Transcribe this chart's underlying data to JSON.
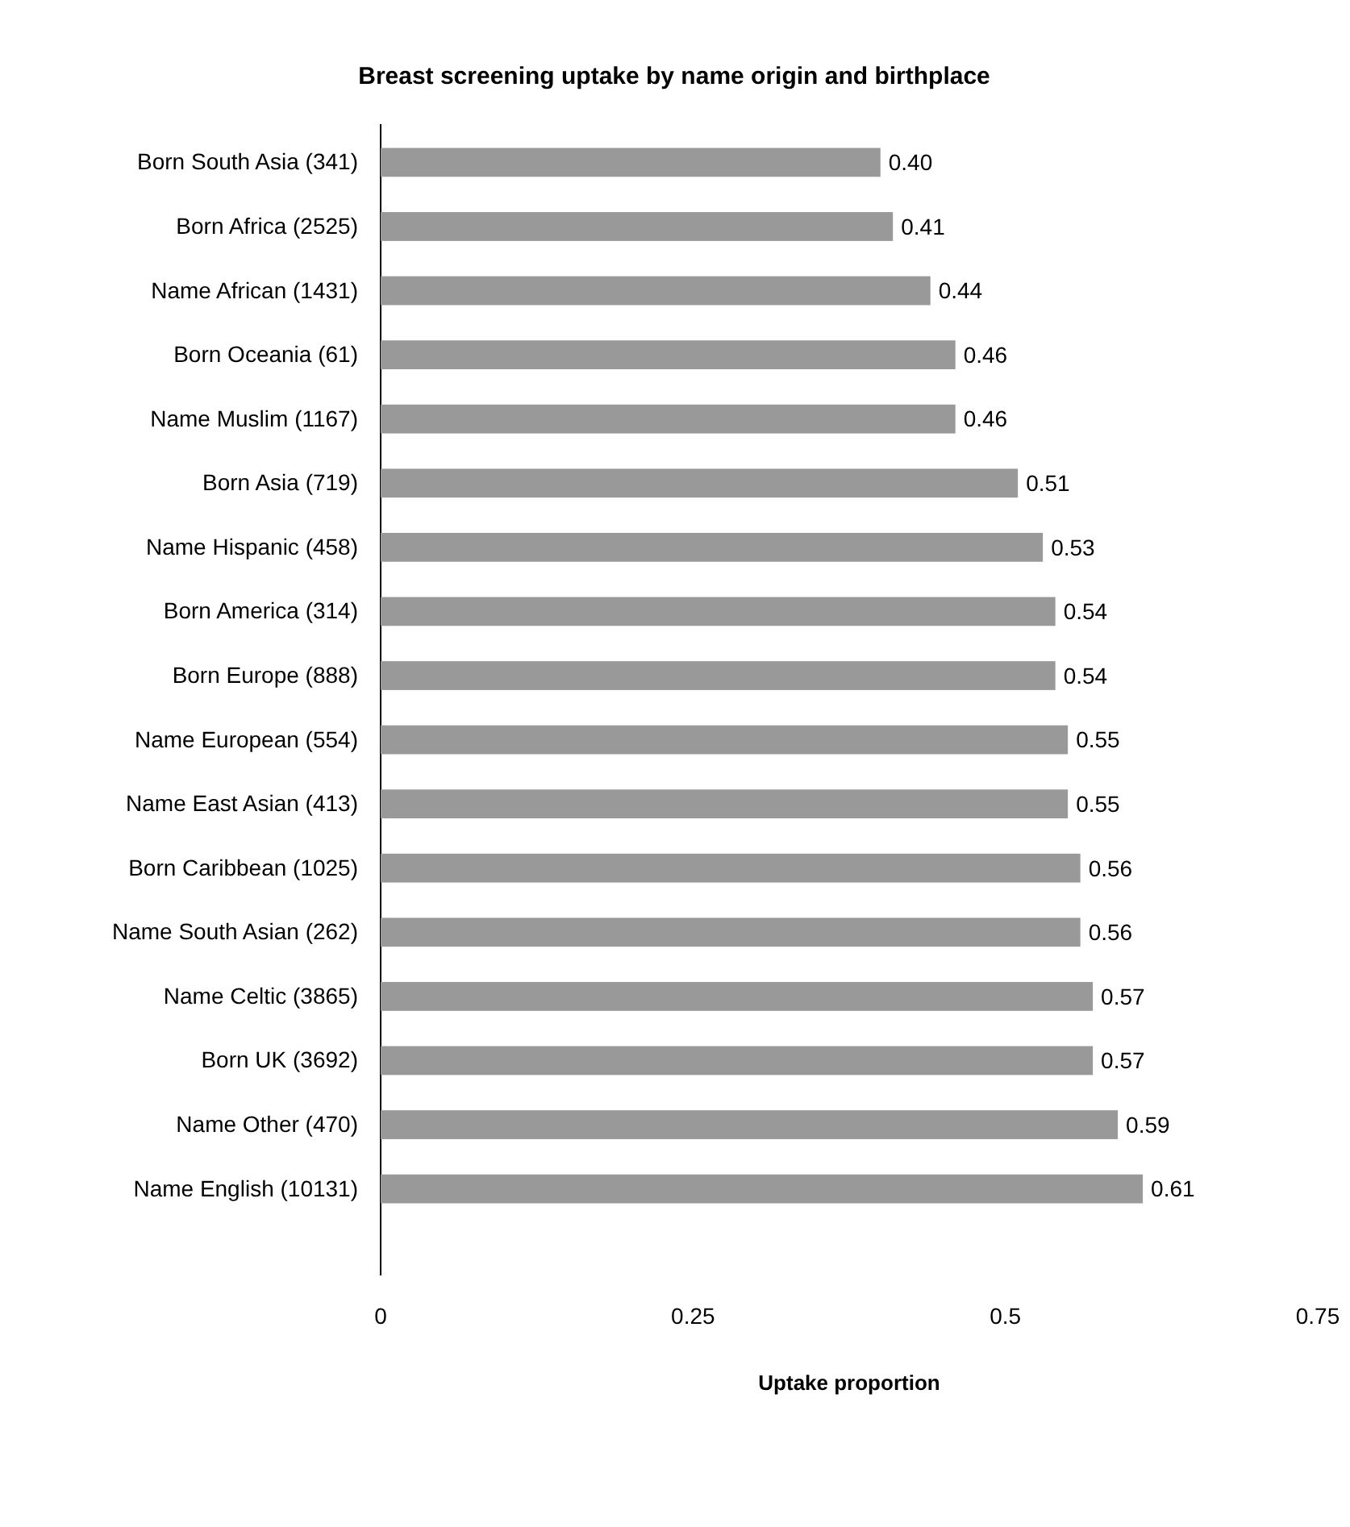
{
  "chart_data": {
    "type": "bar",
    "orientation": "horizontal",
    "title": "Breast screening uptake by name origin and birthplace",
    "xlabel": "Uptake proportion",
    "categories": [
      "Born South Asia (341)",
      "Born Africa (2525)",
      "Name African (1431)",
      "Born Oceania (61)",
      "Name Muslim (1167)",
      "Born Asia (719)",
      "Name Hispanic (458)",
      "Born America (314)",
      "Born Europe (888)",
      "Name European (554)",
      "Name East Asian (413)",
      "Born Caribbean (1025)",
      "Name South Asian (262)",
      "Name Celtic (3865)",
      "Born UK (3692)",
      "Name Other (470)",
      "Name English (10131)"
    ],
    "values": [
      0.4,
      0.41,
      0.44,
      0.46,
      0.46,
      0.51,
      0.53,
      0.54,
      0.54,
      0.55,
      0.55,
      0.56,
      0.56,
      0.57,
      0.57,
      0.59,
      0.61
    ],
    "value_labels": [
      "0.40",
      "0.41",
      "0.44",
      "0.46",
      "0.46",
      "0.51",
      "0.53",
      "0.54",
      "0.54",
      "0.55",
      "0.55",
      "0.56",
      "0.56",
      "0.57",
      "0.57",
      "0.59",
      "0.61"
    ],
    "color": "#999999",
    "xlim": [
      0,
      0.75
    ],
    "xticks": [
      0,
      0.25,
      0.5,
      0.75
    ]
  }
}
